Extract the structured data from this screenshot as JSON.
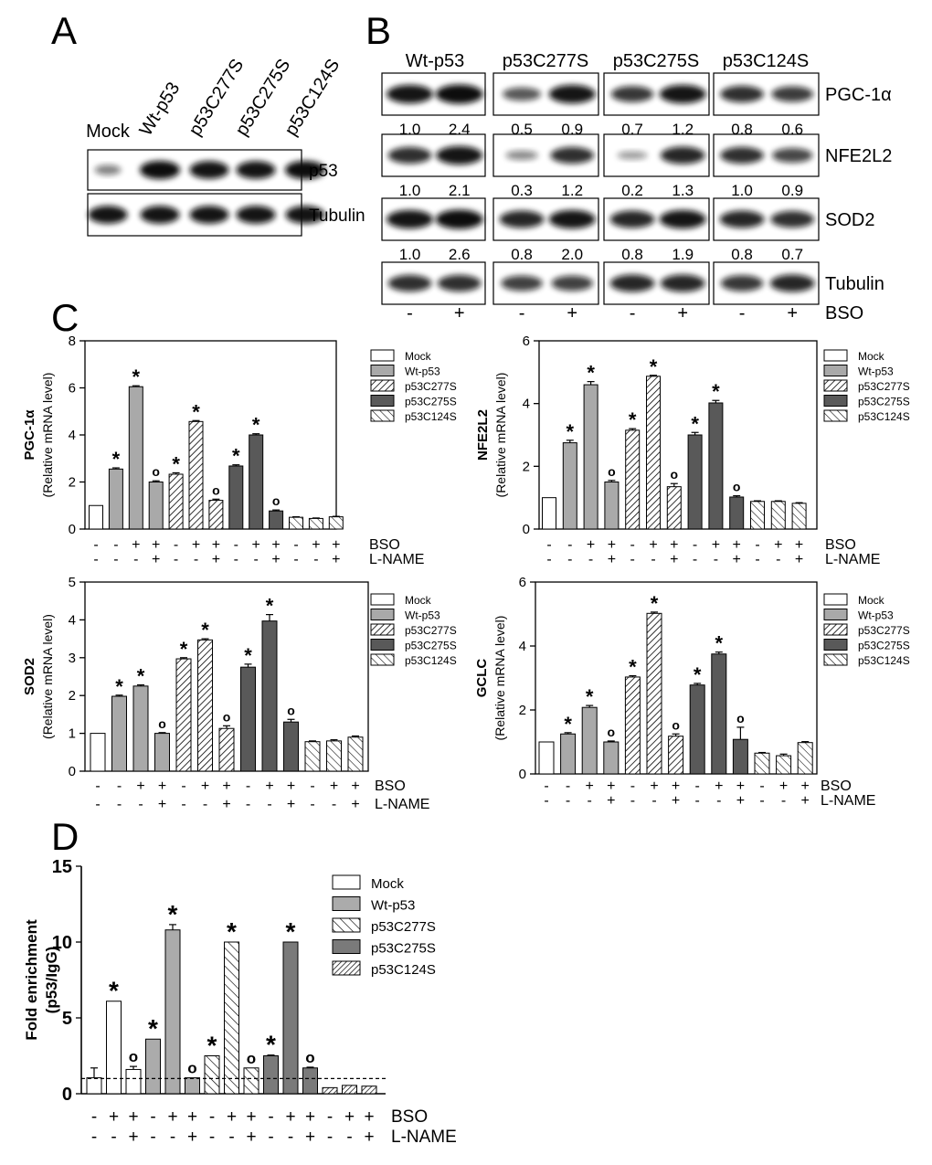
{
  "figure": {
    "panel_labels": {
      "A": "A",
      "B": "B",
      "C": "C",
      "D": "D"
    },
    "colors": {
      "mock": "#ffffff",
      "wt": "#a9a9a9",
      "c275": "#595959",
      "d_c275": "#7a7a7a",
      "axis": "#000000",
      "band": "#0a0a0a"
    }
  },
  "panelA": {
    "lanes": [
      "Mock",
      "Wt-p53",
      "p53C277S",
      "p53C275S",
      "p53C124S"
    ],
    "blots": [
      {
        "label": "p53",
        "intensity": [
          0.25,
          1.0,
          0.95,
          0.95,
          1.0
        ]
      },
      {
        "label": "Tubulin",
        "intensity": [
          0.95,
          0.95,
          0.95,
          0.95,
          0.95
        ]
      }
    ]
  },
  "panelB": {
    "groups": [
      "Wt-p53",
      "p53C277S",
      "p53C275S",
      "p53C124S"
    ],
    "treatment_label": "BSO",
    "treatment_signs": [
      "-",
      "+",
      "-",
      "+",
      "-",
      "+",
      "-",
      "+"
    ],
    "rows": [
      {
        "label": "PGC-1α",
        "values": [
          "1.0",
          "2.4",
          "0.5",
          "0.9",
          "0.7",
          "1.2",
          "0.8",
          "0.6"
        ]
      },
      {
        "label": "NFE2L2",
        "values": [
          "1.0",
          "2.1",
          "0.3",
          "1.2",
          "0.2",
          "1.3",
          "1.0",
          "0.9"
        ]
      },
      {
        "label": "SOD2",
        "values": [
          "1.0",
          "2.6",
          "0.8",
          "2.0",
          "0.8",
          "1.9",
          "0.8",
          "0.7"
        ]
      },
      {
        "label": "Tubulin",
        "values": []
      }
    ]
  },
  "chart_data": [
    {
      "id": "c_pgc",
      "type": "bar",
      "ylabel_main": "PGC-1α",
      "ylabel_sub": "(Relative mRNA level)",
      "ylim": [
        0,
        8
      ],
      "yticks": [
        0,
        2,
        4,
        6,
        8
      ],
      "legend": [
        "Mock",
        "Wt-p53",
        "p53C277S",
        "p53C275S",
        "p53C124S"
      ],
      "series_of_bar": [
        0,
        1,
        1,
        1,
        2,
        2,
        2,
        3,
        3,
        3,
        4,
        4,
        4
      ],
      "values": [
        1.0,
        2.55,
        6.05,
        2.0,
        2.33,
        4.57,
        1.22,
        2.68,
        4.0,
        0.77,
        0.5,
        0.45,
        0.52
      ],
      "errors": [
        0,
        0.05,
        0.04,
        0.05,
        0.06,
        0.04,
        0.05,
        0.05,
        0.05,
        0.04,
        0.02,
        0.02,
        0.02
      ],
      "marks": [
        "",
        "*",
        "*",
        "o",
        "*",
        "*",
        "o",
        "*",
        "*",
        "o",
        "",
        "",
        ""
      ],
      "row1": {
        "label": "BSO",
        "signs": [
          "-",
          "-",
          "+",
          "+",
          "-",
          "+",
          "+",
          "-",
          "+",
          "+",
          "-",
          "+",
          "+"
        ]
      },
      "row2": {
        "label": "L-NAME",
        "signs": [
          "-",
          "-",
          "-",
          "+",
          "-",
          "-",
          "+",
          "-",
          "-",
          "+",
          "-",
          "-",
          "+"
        ]
      }
    },
    {
      "id": "c_nfe",
      "type": "bar",
      "ylabel_main": "NFE2L2",
      "ylabel_sub": "(Relative mRNA level)",
      "ylim": [
        0,
        6
      ],
      "yticks": [
        0,
        2,
        4,
        6
      ],
      "legend": [
        "Mock",
        "Wt-p53",
        "p53C277S",
        "p53C275S",
        "p53C124S"
      ],
      "series_of_bar": [
        0,
        1,
        1,
        1,
        2,
        2,
        2,
        3,
        3,
        3,
        4,
        4,
        4
      ],
      "values": [
        1.0,
        2.75,
        4.6,
        1.5,
        3.15,
        4.87,
        1.35,
        3.0,
        4.02,
        1.02,
        0.88,
        0.88,
        0.82
      ],
      "errors": [
        0,
        0.08,
        0.1,
        0.05,
        0.05,
        0.03,
        0.1,
        0.08,
        0.08,
        0.04,
        0.02,
        0.02,
        0.02
      ],
      "marks": [
        "",
        "*",
        "*",
        "o",
        "*",
        "*",
        "o",
        "*",
        "*",
        "o",
        "",
        "",
        ""
      ],
      "row1": {
        "label": "BSO",
        "signs": [
          "-",
          "-",
          "+",
          "+",
          "-",
          "+",
          "+",
          "-",
          "+",
          "+",
          "-",
          "+",
          "+"
        ]
      },
      "row2": {
        "label": "L-NAME",
        "signs": [
          "-",
          "-",
          "-",
          "+",
          "-",
          "-",
          "+",
          "-",
          "-",
          "+",
          "-",
          "-",
          "+"
        ]
      }
    },
    {
      "id": "c_sod",
      "type": "bar",
      "ylabel_main": "SOD2",
      "ylabel_sub": "(Relative mRNA level)",
      "ylim": [
        0,
        5
      ],
      "yticks": [
        0,
        1,
        2,
        3,
        4,
        5
      ],
      "legend": [
        "Mock",
        "Wt-p53",
        "p53C277S",
        "p53C275S",
        "p53C124S"
      ],
      "series_of_bar": [
        0,
        1,
        1,
        1,
        2,
        2,
        2,
        3,
        3,
        3,
        4,
        4,
        4
      ],
      "values": [
        1.0,
        1.98,
        2.25,
        1.0,
        2.97,
        3.47,
        1.13,
        2.75,
        3.97,
        1.3,
        0.78,
        0.8,
        0.9
      ],
      "errors": [
        0,
        0.03,
        0.03,
        0.02,
        0.03,
        0.03,
        0.07,
        0.08,
        0.17,
        0.07,
        0.02,
        0.03,
        0.03
      ],
      "marks": [
        "",
        "*",
        "*",
        "o",
        "*",
        "*",
        "o",
        "*",
        "*",
        "o",
        "",
        "",
        ""
      ],
      "row1": {
        "label": "BSO",
        "signs": [
          "-",
          "-",
          "+",
          "+",
          "-",
          "+",
          "+",
          "-",
          "+",
          "+",
          "-",
          "+",
          "+"
        ]
      },
      "row2": {
        "label": "L-NAME",
        "signs": [
          "-",
          "-",
          "-",
          "+",
          "-",
          "-",
          "+",
          "-",
          "-",
          "+",
          "-",
          "-",
          "+"
        ]
      }
    },
    {
      "id": "c_gclc",
      "type": "bar",
      "ylabel_main": "GCLC",
      "ylabel_sub": "(Relative mRNA level)",
      "ylim": [
        0,
        6
      ],
      "yticks": [
        0,
        2,
        4,
        6
      ],
      "legend": [
        "Mock",
        "Wt-p53",
        "p53C277S",
        "p53C275S",
        "p53C124S"
      ],
      "series_of_bar": [
        0,
        1,
        1,
        1,
        2,
        2,
        2,
        3,
        3,
        3,
        4,
        4,
        4
      ],
      "values": [
        1.0,
        1.25,
        2.08,
        1.0,
        3.03,
        5.02,
        1.18,
        2.78,
        3.75,
        1.08,
        0.65,
        0.57,
        0.98
      ],
      "errors": [
        0,
        0.04,
        0.06,
        0.03,
        0.04,
        0.04,
        0.07,
        0.05,
        0.06,
        0.38,
        0.02,
        0.05,
        0.03
      ],
      "marks": [
        "",
        "*",
        "*",
        "o",
        "*",
        "*",
        "o",
        "*",
        "*",
        "o",
        "",
        "",
        ""
      ],
      "row1": {
        "label": "BSO",
        "signs": [
          "-",
          "-",
          "+",
          "+",
          "-",
          "+",
          "+",
          "-",
          "+",
          "+",
          "-",
          "+",
          "+"
        ]
      },
      "row2": {
        "label": "L-NAME",
        "signs": [
          "-",
          "-",
          "-",
          "+",
          "-",
          "-",
          "+",
          "-",
          "-",
          "+",
          "-",
          "-",
          "+"
        ]
      }
    },
    {
      "id": "d_chip",
      "type": "bar",
      "ylabel_main": "Fold enrichment",
      "ylabel_sub": "(p53/IgG)",
      "ylim": [
        0,
        15
      ],
      "yticks": [
        0,
        5,
        10,
        15
      ],
      "reference_line": 1,
      "legend": [
        "Mock",
        "Wt-p53",
        "p53C277S",
        "p53C275S",
        "p53C124S"
      ],
      "series_of_bar": [
        0,
        0,
        0,
        1,
        1,
        1,
        2,
        2,
        2,
        3,
        3,
        3,
        4,
        4,
        4
      ],
      "values": [
        1.05,
        6.1,
        1.6,
        3.6,
        10.8,
        1.05,
        2.5,
        10.0,
        1.7,
        2.5,
        10.0,
        1.7,
        0.4,
        0.55,
        0.5
      ],
      "errors": [
        0.65,
        0,
        0.2,
        0,
        0.35,
        0,
        0,
        0,
        0,
        0.05,
        0,
        0.05,
        0,
        0,
        0
      ],
      "marks": [
        "",
        "*",
        "o",
        "*",
        "*",
        "o",
        "*",
        "*",
        "o",
        "*",
        "*",
        "o",
        "",
        "",
        ""
      ],
      "row1": {
        "label": "BSO",
        "signs": [
          "-",
          "+",
          "+",
          "-",
          "+",
          "+",
          "-",
          "+",
          "+",
          "-",
          "+",
          "+",
          "-",
          "+",
          "+"
        ]
      },
      "row2": {
        "label": "L-NAME",
        "signs": [
          "-",
          "-",
          "+",
          "-",
          "-",
          "+",
          "-",
          "-",
          "+",
          "-",
          "-",
          "+",
          "-",
          "-",
          "+"
        ]
      }
    }
  ]
}
